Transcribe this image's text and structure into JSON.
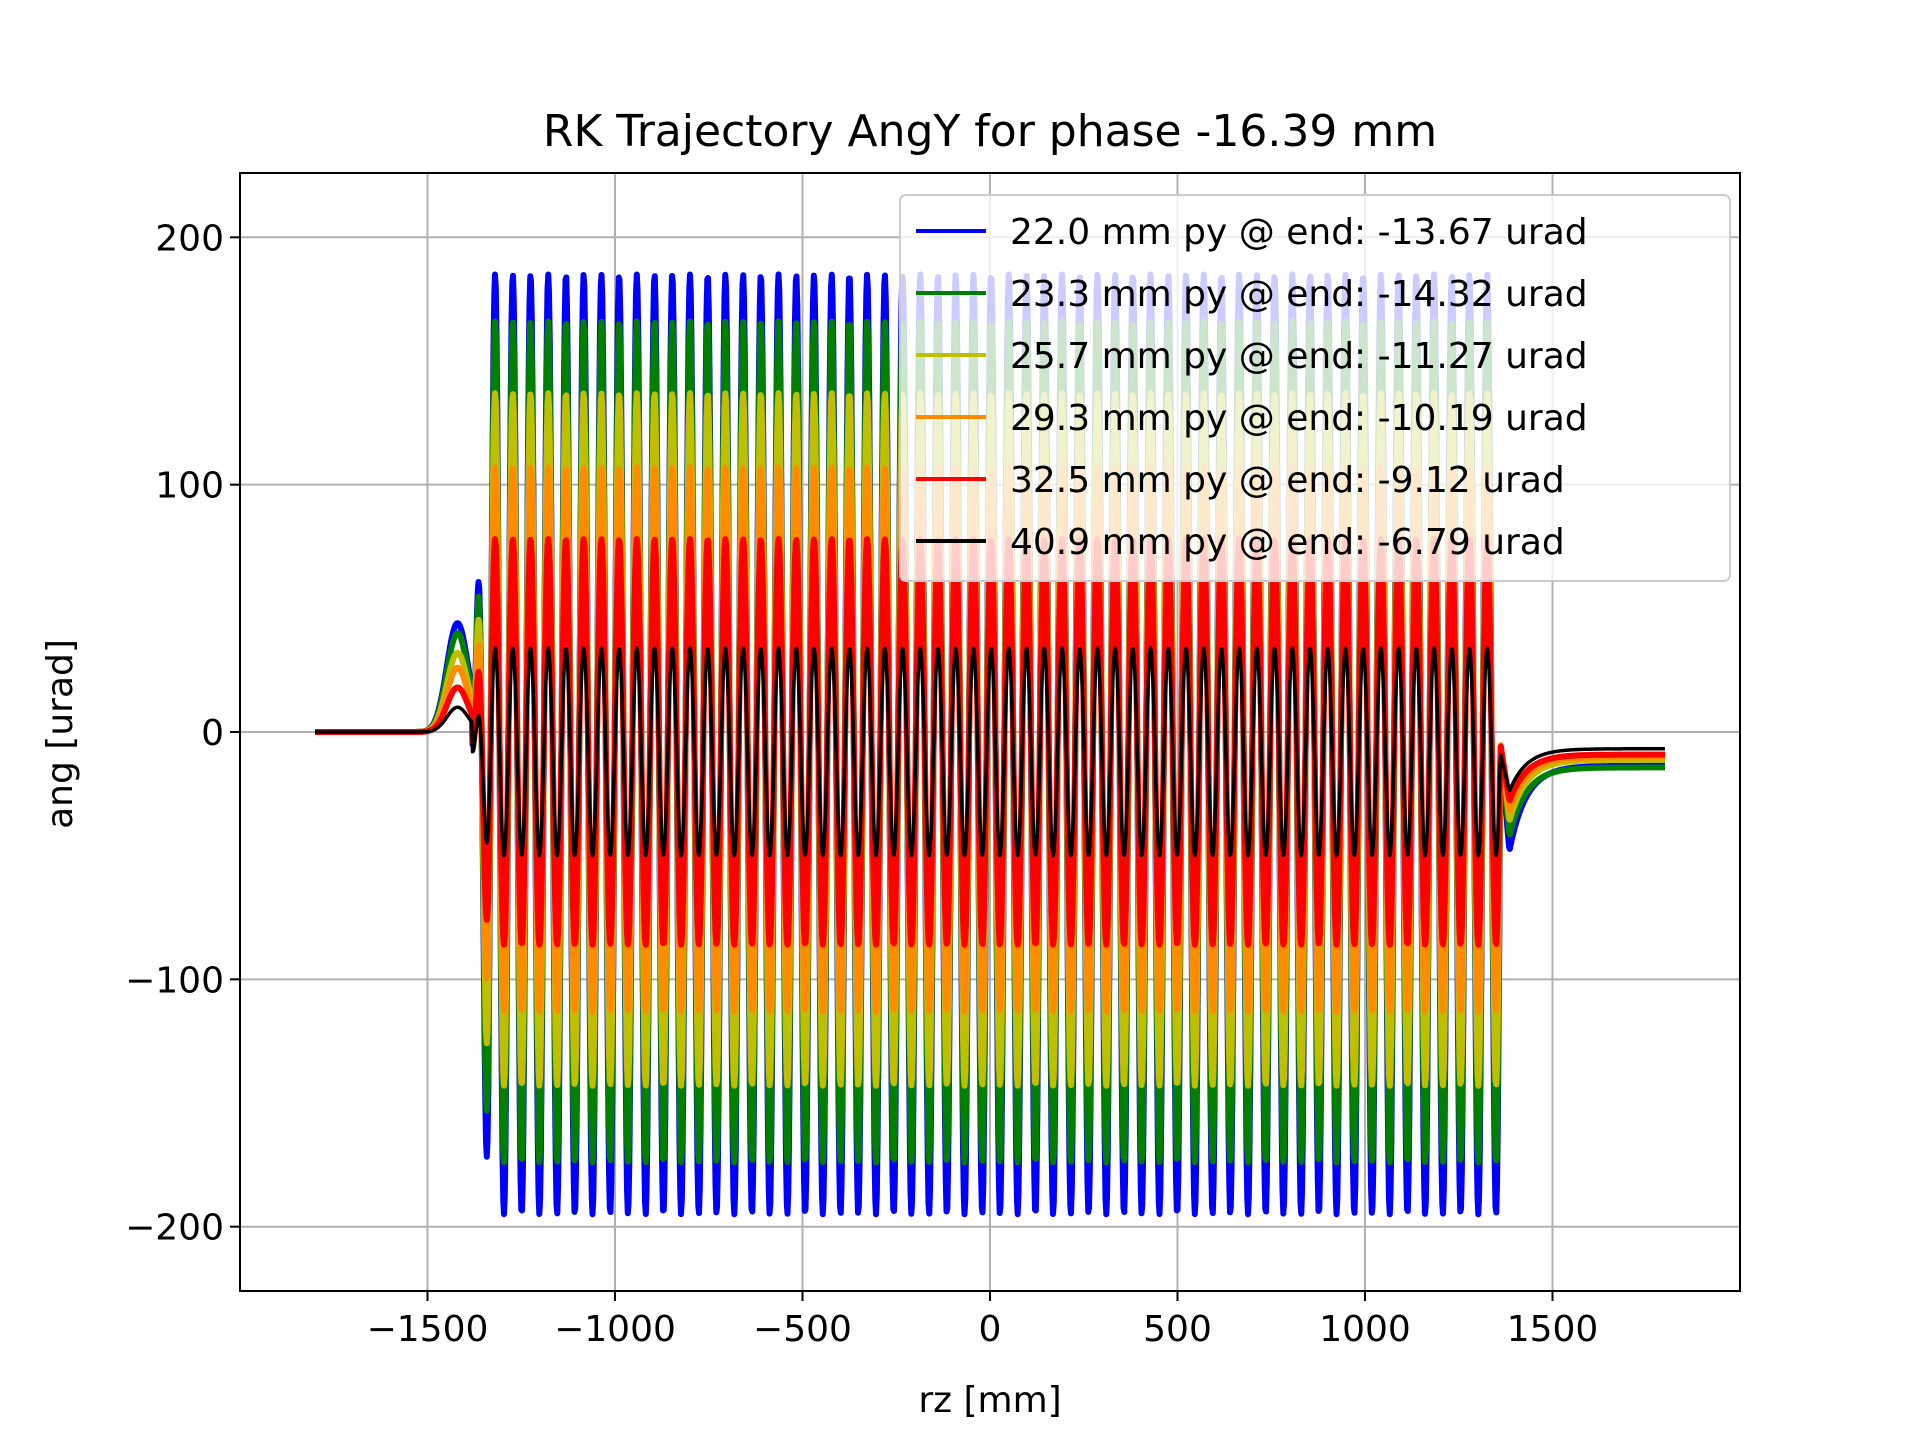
{
  "chart_data": {
    "type": "line",
    "title": "RK Trajectory AngY for phase -16.39 mm",
    "xlabel": "rz [mm]",
    "ylabel": "ang [urad]",
    "xlim": [
      -2000,
      2000
    ],
    "ylim": [
      -226,
      226
    ],
    "xticks": [
      -1500,
      -1000,
      -500,
      0,
      500,
      1000,
      1500
    ],
    "xtick_labels": [
      "−1500",
      "−1000",
      "−500",
      "0",
      "500",
      "1000",
      "1500"
    ],
    "yticks": [
      -200,
      -100,
      0,
      100,
      200
    ],
    "ytick_labels": [
      "−200",
      "−100",
      "0",
      "100",
      "200"
    ],
    "grid": true,
    "legend_position": "top-right",
    "x_range": [
      -1800,
      1800
    ],
    "undulator": {
      "start": -1380,
      "end": 1360,
      "periods": 58
    },
    "series": [
      {
        "name": "22.0 mm py @ end: -13.67 urad",
        "color": "#0000ff",
        "amplitude": 190,
        "offset": -5,
        "entry_bump": 44,
        "exit_dip": -48,
        "end_value": -13.67,
        "line_width": 6
      },
      {
        "name": "23.3 mm py @ end: -14.32 urad",
        "color": "#008000",
        "amplitude": 170,
        "offset": -4,
        "entry_bump": 40,
        "exit_dip": -42,
        "end_value": -14.32,
        "line_width": 6
      },
      {
        "name": "25.7 mm py @ end: -11.27 urad",
        "color": "#bfbf00",
        "amplitude": 140,
        "offset": -3,
        "entry_bump": 32,
        "exit_dip": -36,
        "end_value": -11.27,
        "line_width": 6
      },
      {
        "name": "29.3 mm py @ end: -10.19 urad",
        "color": "#ff8c00",
        "amplitude": 110,
        "offset": -3,
        "entry_bump": 26,
        "exit_dip": -32,
        "end_value": -10.19,
        "line_width": 6
      },
      {
        "name": "32.5 mm py @ end: -9.12 urad",
        "color": "#ff0000",
        "amplitude": 82,
        "offset": -4,
        "entry_bump": 18,
        "exit_dip": -28,
        "end_value": -9.12,
        "line_width": 6
      },
      {
        "name": "40.9 mm py @ end: -6.79 urad",
        "color": "#000000",
        "amplitude": 42,
        "offset": -8,
        "entry_bump": 10,
        "exit_dip": -24,
        "end_value": -6.79,
        "line_width": 3.5
      }
    ]
  }
}
